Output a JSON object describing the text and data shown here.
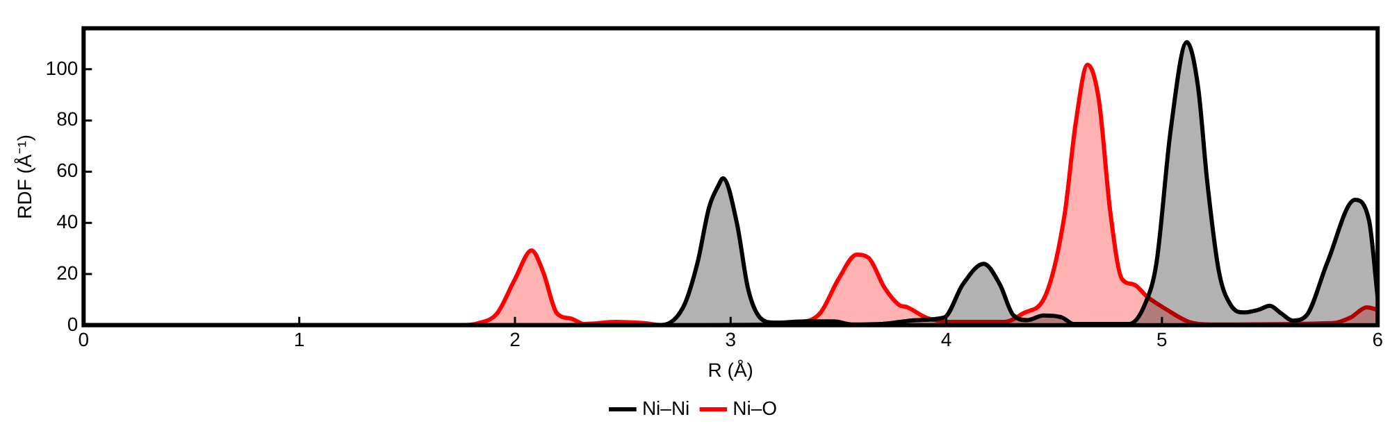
{
  "chart_data": {
    "type": "area",
    "xlabel": "R (Å)",
    "ylabel": "RDF (Å⁻¹)",
    "xlim": [
      0,
      6
    ],
    "xticks": [
      0,
      1,
      2,
      3,
      4,
      5,
      6
    ],
    "ylim": [
      0,
      116
    ],
    "yticks": [
      0,
      20,
      40,
      60,
      80,
      100
    ],
    "grid": false,
    "legend": "bottom",
    "marker": "none",
    "line_style": "solid",
    "series": [
      {
        "name": "Ni–Ni",
        "color": "#000000",
        "x": [
          0,
          2.6,
          2.665,
          2.78,
          2.847,
          2.9,
          2.943,
          2.965,
          3.03,
          3.08,
          3.136,
          3.2,
          3.35,
          3.48,
          3.56,
          3.7,
          3.863,
          3.99,
          4.077,
          4.173,
          4.248,
          4.31,
          4.377,
          4.45,
          4.537,
          4.59,
          4.847,
          4.92,
          4.975,
          5.04,
          5.115,
          5.168,
          5.21,
          5.264,
          5.318,
          5.38,
          5.446,
          5.5,
          5.553,
          5.607,
          5.67,
          5.767,
          5.895,
          5.96,
          6.0
        ],
        "values": [
          0,
          0,
          0,
          7,
          24.6,
          46,
          54.5,
          57.4,
          39.5,
          14.6,
          3,
          1,
          1.5,
          1.5,
          0.3,
          0.5,
          2,
          3,
          16,
          24,
          16,
          4,
          2,
          3.8,
          3,
          0.5,
          0.5,
          8,
          24.6,
          76,
          110.6,
          92.7,
          56,
          21,
          8,
          5,
          6,
          7.6,
          4.6,
          1.8,
          3.8,
          24.6,
          49,
          41,
          11
        ]
      },
      {
        "name": "Ni–O",
        "color": "#ff0000",
        "x": [
          0,
          1.75,
          1.83,
          1.917,
          2.0,
          2.077,
          2.13,
          2.195,
          2.26,
          2.32,
          2.47,
          2.6,
          2.687,
          3.18,
          3.31,
          3.414,
          3.5,
          3.585,
          3.64,
          3.714,
          3.78,
          3.82,
          3.906,
          4.013,
          4.27,
          4.355,
          4.462,
          4.548,
          4.6,
          4.655,
          4.708,
          4.76,
          4.815,
          4.868,
          4.933,
          5.018,
          5.125,
          5.23,
          5.79,
          5.874,
          5.95,
          6.0
        ],
        "values": [
          0,
          0,
          0.8,
          4.6,
          18,
          29.2,
          21,
          4.6,
          2.6,
          0.5,
          1.3,
          0.8,
          0,
          0.3,
          1,
          4.6,
          18,
          27.6,
          26.3,
          14.6,
          8,
          7,
          3,
          1.3,
          1.3,
          4.6,
          12,
          43,
          79,
          101.8,
          87.7,
          44.5,
          18,
          16,
          11,
          6.3,
          1.3,
          0.3,
          0.8,
          3,
          7,
          6
        ]
      }
    ]
  }
}
